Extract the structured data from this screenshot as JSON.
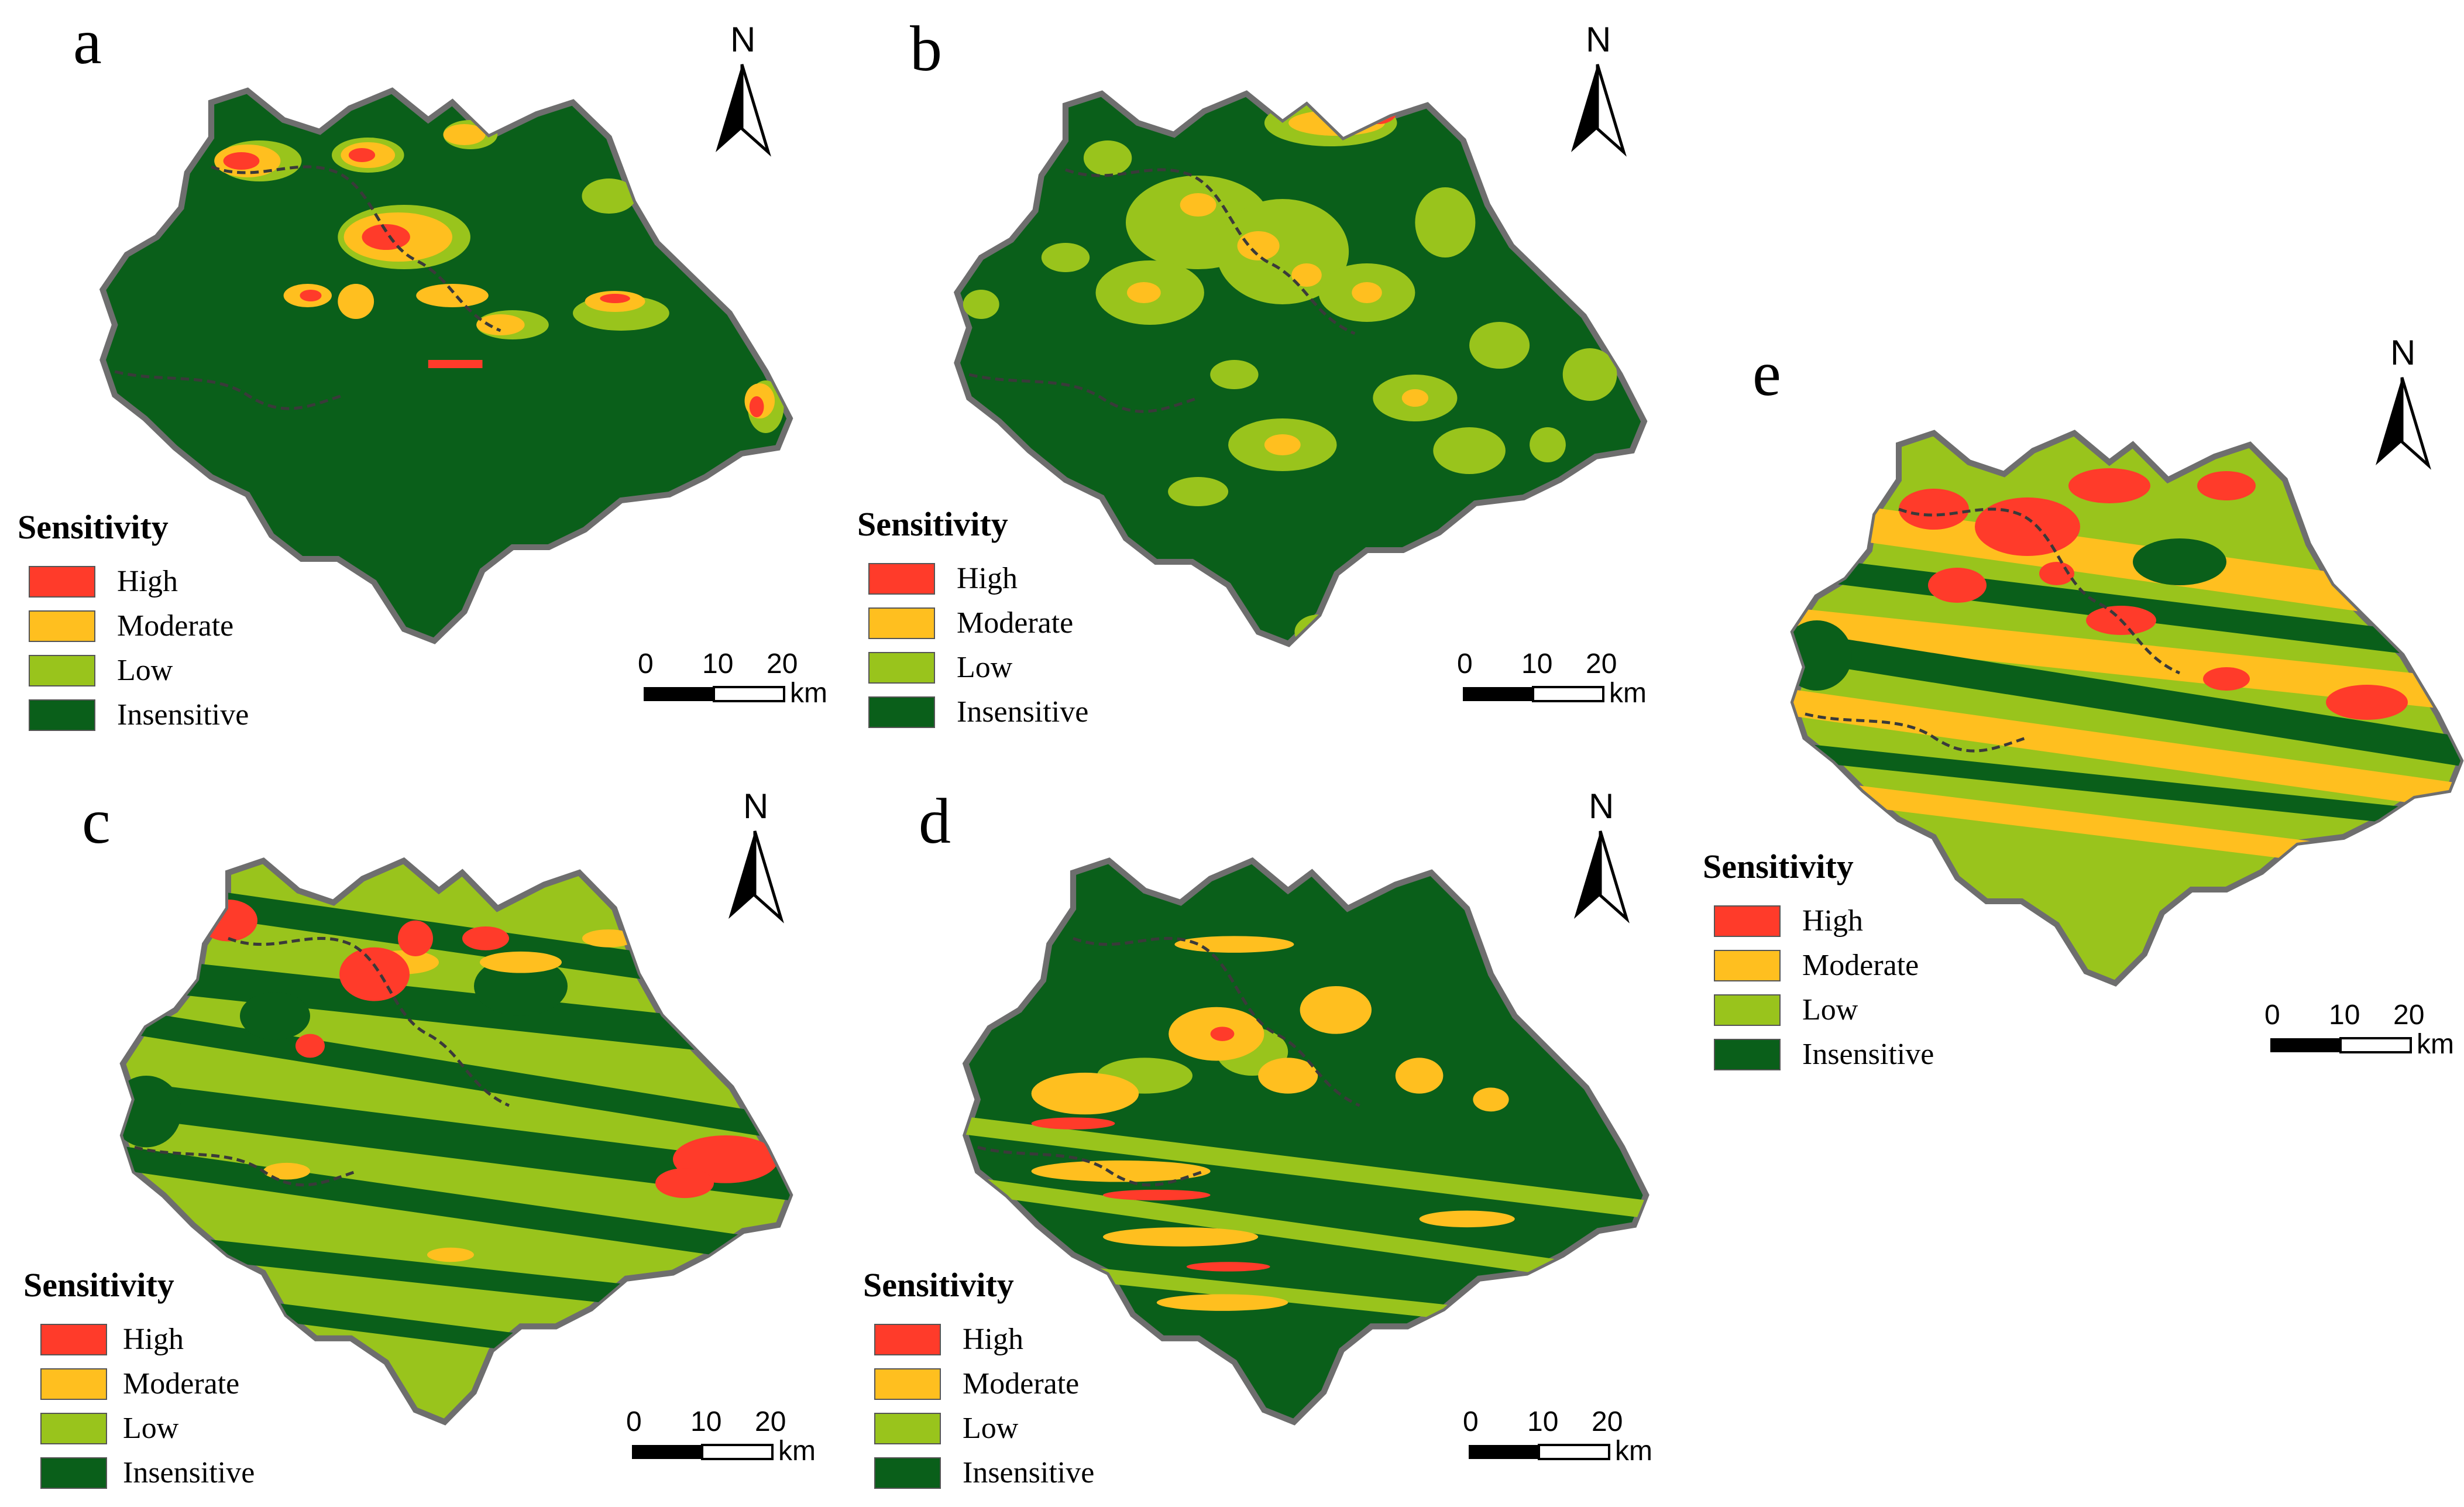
{
  "colors": {
    "high": "#ff3b2a",
    "moderate": "#ffbf1f",
    "low": "#99c41c",
    "insensitive": "#0a5f1a",
    "outline": "#6e6e6e"
  },
  "legend": {
    "title": "Sensitivity",
    "items": [
      {
        "label": "High",
        "key": "high"
      },
      {
        "label": "Moderate",
        "key": "moderate"
      },
      {
        "label": "Low",
        "key": "low"
      },
      {
        "label": "Insensitive",
        "key": "insensitive"
      }
    ]
  },
  "north_label": "N",
  "scale_bar": {
    "ticks": [
      "0",
      "10",
      "20"
    ],
    "unit": "km"
  },
  "panels": [
    {
      "id": "a",
      "letter": "a",
      "dominant": "insensitive"
    },
    {
      "id": "b",
      "letter": "b",
      "dominant": "insensitive"
    },
    {
      "id": "c",
      "letter": "c",
      "dominant": "low"
    },
    {
      "id": "d",
      "letter": "d",
      "dominant": "insensitive"
    },
    {
      "id": "e",
      "letter": "e",
      "dominant": "low"
    }
  ]
}
